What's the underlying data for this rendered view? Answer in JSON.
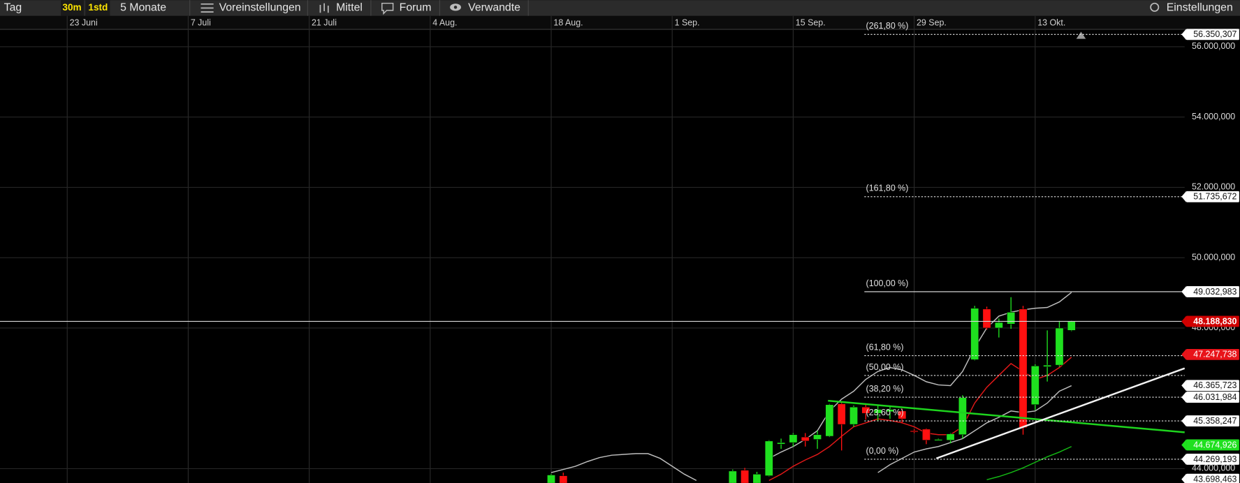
{
  "toolbar": {
    "period": "Tag",
    "buttons": [
      "30m",
      "1std"
    ],
    "range": "5 Monate",
    "menus": [
      "Voreinstellungen",
      "Mittel",
      "Forum",
      "Verwandte"
    ],
    "settings": "Einstellungen"
  },
  "chart_data": {
    "type": "candlestick",
    "categories": [
      null,
      null,
      null,
      null,
      null,
      "23 Juni",
      null,
      null,
      null,
      null,
      null,
      null,
      null,
      null,
      null,
      "7 Juli",
      null,
      null,
      null,
      null,
      null,
      null,
      null,
      null,
      null,
      "21 Juli",
      null,
      null,
      null,
      null,
      null,
      null,
      null,
      null,
      null,
      "4 Aug.",
      null,
      null,
      null,
      null,
      null,
      null,
      null,
      null,
      null,
      "18 Aug.",
      null,
      null,
      null,
      null,
      null,
      null,
      null,
      null,
      null,
      "1 Sep.",
      null,
      null,
      null,
      null,
      null,
      null,
      null,
      null,
      null,
      "15 Sep.",
      null,
      null,
      null,
      null,
      null,
      null,
      null,
      null,
      null,
      "29 Sep.",
      null,
      null,
      null,
      null,
      null,
      null,
      null,
      null,
      null,
      "13 Okt.",
      null,
      null,
      null
    ],
    "open": [
      null,
      null,
      null,
      null,
      null,
      null,
      null,
      null,
      null,
      null,
      null,
      null,
      null,
      null,
      null,
      null,
      null,
      null,
      null,
      null,
      null,
      null,
      null,
      null,
      null,
      null,
      null,
      null,
      null,
      null,
      null,
      null,
      null,
      null,
      null,
      null,
      null,
      null,
      null,
      null,
      null,
      null,
      null,
      null,
      null,
      43400,
      43799,
      null,
      null,
      null,
      null,
      null,
      null,
      null,
      null,
      null,
      null,
      null,
      null,
      null,
      43500,
      43956,
      43500,
      43799,
      44697,
      44742,
      44900,
      44832,
      44922,
      45843,
      45259,
      45753,
      45574,
      45619,
      45641,
      45079,
      45124,
      44832,
      44810,
      44967,
      47101,
      48540,
      48001,
      48113,
      48540,
      45821,
      46900,
      46945,
      47933
    ],
    "high": [
      null,
      null,
      null,
      null,
      null,
      null,
      null,
      null,
      null,
      null,
      null,
      null,
      null,
      null,
      null,
      null,
      null,
      null,
      null,
      null,
      null,
      null,
      null,
      null,
      null,
      null,
      null,
      null,
      null,
      null,
      null,
      null,
      null,
      null,
      null,
      null,
      null,
      null,
      null,
      null,
      null,
      null,
      null,
      null,
      null,
      43850,
      43888,
      null,
      null,
      null,
      null,
      null,
      null,
      null,
      null,
      null,
      null,
      null,
      null,
      null,
      43978,
      44023,
      43911,
      44810,
      44855,
      45012,
      45012,
      45079,
      45843,
      45911,
      45798,
      45843,
      45798,
      45776,
      45708,
      45124,
      45147,
      44855,
      45012,
      46090,
      48630,
      48607,
      48270,
      48877,
      48630,
      46967,
      47933,
      48203,
      48203
    ],
    "low": [
      null,
      null,
      null,
      null,
      null,
      null,
      null,
      null,
      null,
      null,
      null,
      null,
      null,
      null,
      null,
      null,
      null,
      null,
      null,
      null,
      null,
      null,
      null,
      null,
      null,
      null,
      null,
      null,
      null,
      null,
      null,
      null,
      null,
      null,
      null,
      null,
      null,
      null,
      null,
      null,
      null,
      null,
      null,
      null,
      null,
      43300,
      43300,
      null,
      null,
      null,
      null,
      null,
      null,
      null,
      null,
      null,
      null,
      null,
      null,
      null,
      43400,
      43400,
      43400,
      43780,
      44563,
      44630,
      44630,
      44563,
      44900,
      44518,
      45192,
      45394,
      45349,
      45416,
      45304,
      45012,
      44697,
      44810,
      44720,
      44855,
      47079,
      47955,
      47730,
      47977,
      44967,
      45663,
      46478,
      46900,
      47910
    ],
    "close": [
      null,
      null,
      null,
      null,
      null,
      null,
      null,
      null,
      null,
      null,
      null,
      null,
      null,
      null,
      null,
      null,
      null,
      null,
      null,
      null,
      null,
      null,
      null,
      null,
      null,
      null,
      null,
      null,
      null,
      null,
      null,
      null,
      null,
      null,
      null,
      null,
      null,
      null,
      null,
      null,
      null,
      null,
      null,
      null,
      null,
      43821,
      43400,
      null,
      null,
      null,
      null,
      null,
      null,
      null,
      null,
      null,
      null,
      null,
      null,
      null,
      43933,
      43500,
      43844,
      44787,
      44742,
      44967,
      44787,
      44967,
      45821,
      45259,
      45753,
      45574,
      45686,
      45686,
      45416,
      45057,
      44810,
      44832,
      44990,
      46023,
      48562,
      48001,
      48158,
      48450,
      45169,
      46922,
      46945,
      47999,
      48188.83
    ],
    "up_color": "#1fe01f",
    "down_color": "#ff1010",
    "lines": [
      {
        "color": "#bdbdbd",
        "values": [
          null,
          null,
          null,
          null,
          null,
          null,
          null,
          null,
          null,
          null,
          null,
          null,
          null,
          null,
          null,
          null,
          null,
          null,
          null,
          null,
          null,
          null,
          null,
          null,
          null,
          null,
          null,
          null,
          null,
          null,
          null,
          null,
          null,
          null,
          null,
          null,
          null,
          null,
          null,
          null,
          null,
          null,
          null,
          null,
          null,
          43889,
          43978,
          44068,
          44203,
          44316,
          44383,
          44406,
          44428,
          44428,
          44293,
          44068,
          43844,
          43664,
          null,
          null,
          null,
          null,
          null,
          44293,
          44473,
          44630,
          44832,
          45079,
          45641,
          45978,
          46203,
          46540,
          46765,
          46877,
          46810,
          46653,
          46473,
          46383,
          46361,
          46765,
          47439,
          48001,
          48338,
          48450,
          48518,
          48563,
          48585,
          48742,
          49012
        ]
      },
      {
        "color": "#e01818",
        "values": [
          null,
          null,
          null,
          null,
          null,
          null,
          null,
          null,
          null,
          null,
          null,
          null,
          null,
          null,
          null,
          null,
          null,
          null,
          null,
          null,
          null,
          null,
          null,
          null,
          null,
          null,
          null,
          null,
          null,
          null,
          null,
          null,
          null,
          null,
          null,
          null,
          null,
          null,
          null,
          null,
          null,
          null,
          null,
          null,
          null,
          null,
          null,
          null,
          null,
          null,
          null,
          null,
          null,
          null,
          null,
          null,
          null,
          null,
          null,
          null,
          null,
          null,
          null,
          43664,
          43844,
          44068,
          44248,
          44405,
          44630,
          44922,
          45192,
          45304,
          45416,
          45371,
          45304,
          45192,
          45012,
          44967,
          44967,
          45192,
          45866,
          46316,
          46653,
          46990,
          46765,
          46540,
          46653,
          46877,
          47169
        ]
      },
      {
        "color": "#bdbdbd",
        "values": [
          null,
          null,
          null,
          null,
          null,
          null,
          null,
          null,
          null,
          null,
          null,
          null,
          null,
          null,
          null,
          null,
          null,
          null,
          null,
          null,
          null,
          null,
          null,
          null,
          null,
          null,
          null,
          null,
          null,
          null,
          null,
          null,
          null,
          null,
          null,
          null,
          null,
          null,
          null,
          null,
          null,
          null,
          null,
          null,
          null,
          null,
          null,
          null,
          null,
          null,
          null,
          null,
          null,
          null,
          null,
          null,
          null,
          null,
          null,
          null,
          null,
          null,
          null,
          null,
          null,
          null,
          null,
          null,
          null,
          null,
          null,
          null,
          43889,
          44113,
          44293,
          44473,
          44563,
          44630,
          44742,
          44855,
          45079,
          45304,
          45461,
          45641,
          45596,
          45641,
          45866,
          46203,
          46361
        ]
      },
      {
        "color": "#14b814",
        "values": [
          null,
          null,
          null,
          null,
          null,
          null,
          null,
          null,
          null,
          null,
          null,
          null,
          null,
          null,
          null,
          null,
          null,
          null,
          null,
          null,
          null,
          null,
          null,
          null,
          null,
          null,
          null,
          null,
          null,
          null,
          null,
          null,
          null,
          null,
          null,
          null,
          null,
          null,
          null,
          null,
          null,
          null,
          null,
          null,
          null,
          null,
          null,
          null,
          null,
          null,
          null,
          null,
          null,
          null,
          null,
          null,
          null,
          null,
          null,
          null,
          null,
          null,
          null,
          null,
          null,
          null,
          null,
          null,
          null,
          null,
          null,
          null,
          null,
          null,
          null,
          null,
          null,
          null,
          null,
          null,
          null,
          43686,
          43776,
          43889,
          44023,
          44181,
          44338,
          44473,
          44630
        ]
      }
    ],
    "ylim": [
      43596,
      56494
    ],
    "yticks": [
      {
        "value": 44000,
        "label": "44.000,000"
      },
      {
        "value": 48000,
        "label": "48.000,000"
      },
      {
        "value": 50000,
        "label": "50.000,000"
      },
      {
        "value": 52000,
        "label": "52.000,000"
      },
      {
        "value": 54000,
        "label": "54.000,000"
      },
      {
        "value": 56000,
        "label": "56.000,000"
      }
    ],
    "grid": true,
    "fib_levels": [
      {
        "name": "(261,80 %)",
        "value": 56350.307,
        "value_label": "56.350,307"
      },
      {
        "name": "(161,80 %)",
        "value": 51735.672,
        "value_label": "51.735,672"
      },
      {
        "name": "(100,00 %)",
        "value": 49032.983,
        "value_label": "49.032,983"
      },
      {
        "name": "(61,80 %)",
        "value": 47213
      },
      {
        "name": "(50,00 %)",
        "value": 46651
      },
      {
        "name": "(38,20 %)",
        "value": 46031.984,
        "value_label": "46.031,984"
      },
      {
        "name": "(23,60 %)",
        "value": 45358.247,
        "value_label": "45.358,247"
      },
      {
        "name": "(0,00 %)",
        "value": 44269.193,
        "value_label": "44.269,193"
      }
    ],
    "price_markers": [
      {
        "value": 48188.83,
        "label": "48.188,830",
        "color": "#d00000",
        "current": true
      },
      {
        "value": 47247.738,
        "label": "47.247,738",
        "color": "#e8141a"
      },
      {
        "value": 46365.723,
        "label": "46.365,723",
        "color": "#ffffff"
      },
      {
        "value": 44674.926,
        "label": "44.674,926",
        "color": "#1fe01f"
      },
      {
        "value": 43698.463,
        "label": "43.698,463",
        "color": "#ffffff"
      }
    ]
  }
}
